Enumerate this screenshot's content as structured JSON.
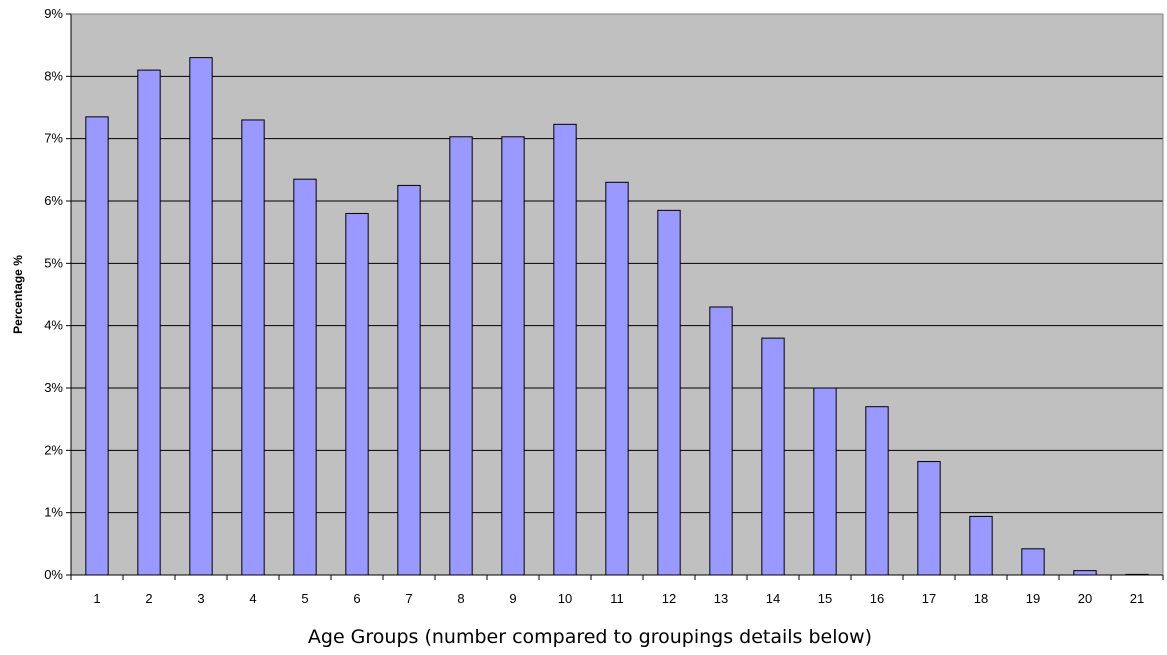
{
  "chart_data": {
    "type": "bar",
    "title": "",
    "xlabel": "Age Groups (number compared to groupings details below)",
    "ylabel": "Percentage %",
    "categories": [
      "1",
      "2",
      "3",
      "4",
      "5",
      "6",
      "7",
      "8",
      "9",
      "10",
      "11",
      "12",
      "13",
      "14",
      "15",
      "16",
      "17",
      "18",
      "19",
      "20",
      "21"
    ],
    "values": [
      7.35,
      8.1,
      8.3,
      7.3,
      6.35,
      5.8,
      6.25,
      7.03,
      7.03,
      7.23,
      6.3,
      5.85,
      4.3,
      3.8,
      3.0,
      2.7,
      1.82,
      0.94,
      0.42,
      0.07,
      0.01
    ],
    "ylim": [
      0,
      9
    ],
    "y_ticks": [
      "0%",
      "1%",
      "2%",
      "3%",
      "4%",
      "5%",
      "6%",
      "7%",
      "8%",
      "9%"
    ],
    "grid": true,
    "legend": "none",
    "colors": {
      "plot_background": "#c0c0c0",
      "bar_fill": "#9999ff",
      "bar_stroke": "#000000",
      "gridline": "#000000"
    }
  }
}
